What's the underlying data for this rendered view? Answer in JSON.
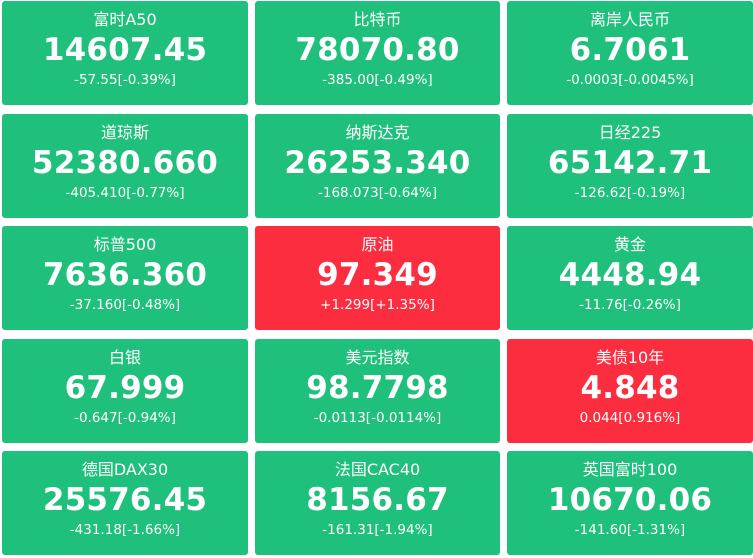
{
  "colors": {
    "down": "#1ec07b",
    "up": "#fb2d3e",
    "text": "#ffffff"
  },
  "tiles": [
    {
      "name": "富时A50",
      "price": "14607.45",
      "change": "-57.55[-0.39%]",
      "trend": "down"
    },
    {
      "name": "比特币",
      "price": "78070.80",
      "change": "-385.00[-0.49%]",
      "trend": "down"
    },
    {
      "name": "离岸人民币",
      "price": "6.7061",
      "change": "-0.0003[-0.0045%]",
      "trend": "down"
    },
    {
      "name": "道琼斯",
      "price": "52380.660",
      "change": "-405.410[-0.77%]",
      "trend": "down"
    },
    {
      "name": "纳斯达克",
      "price": "26253.340",
      "change": "-168.073[-0.64%]",
      "trend": "down"
    },
    {
      "name": "日经225",
      "price": "65142.71",
      "change": "-126.62[-0.19%]",
      "trend": "down"
    },
    {
      "name": "标普500",
      "price": "7636.360",
      "change": "-37.160[-0.48%]",
      "trend": "down"
    },
    {
      "name": "原油",
      "price": "97.349",
      "change": "+1.299[+1.35%]",
      "trend": "up"
    },
    {
      "name": "黄金",
      "price": "4448.94",
      "change": "-11.76[-0.26%]",
      "trend": "down"
    },
    {
      "name": "白银",
      "price": "67.999",
      "change": "-0.647[-0.94%]",
      "trend": "down"
    },
    {
      "name": "美元指数",
      "price": "98.7798",
      "change": "-0.0113[-0.0114%]",
      "trend": "down"
    },
    {
      "name": "美债10年",
      "price": "4.848",
      "change": "0.044[0.916%]",
      "trend": "up"
    },
    {
      "name": "德国DAX30",
      "price": "25576.45",
      "change": "-431.18[-1.66%]",
      "trend": "down"
    },
    {
      "name": "法国CAC40",
      "price": "8156.67",
      "change": "-161.31[-1.94%]",
      "trend": "down"
    },
    {
      "name": "英国富时100",
      "price": "10670.06",
      "change": "-141.60[-1.31%]",
      "trend": "down"
    }
  ]
}
